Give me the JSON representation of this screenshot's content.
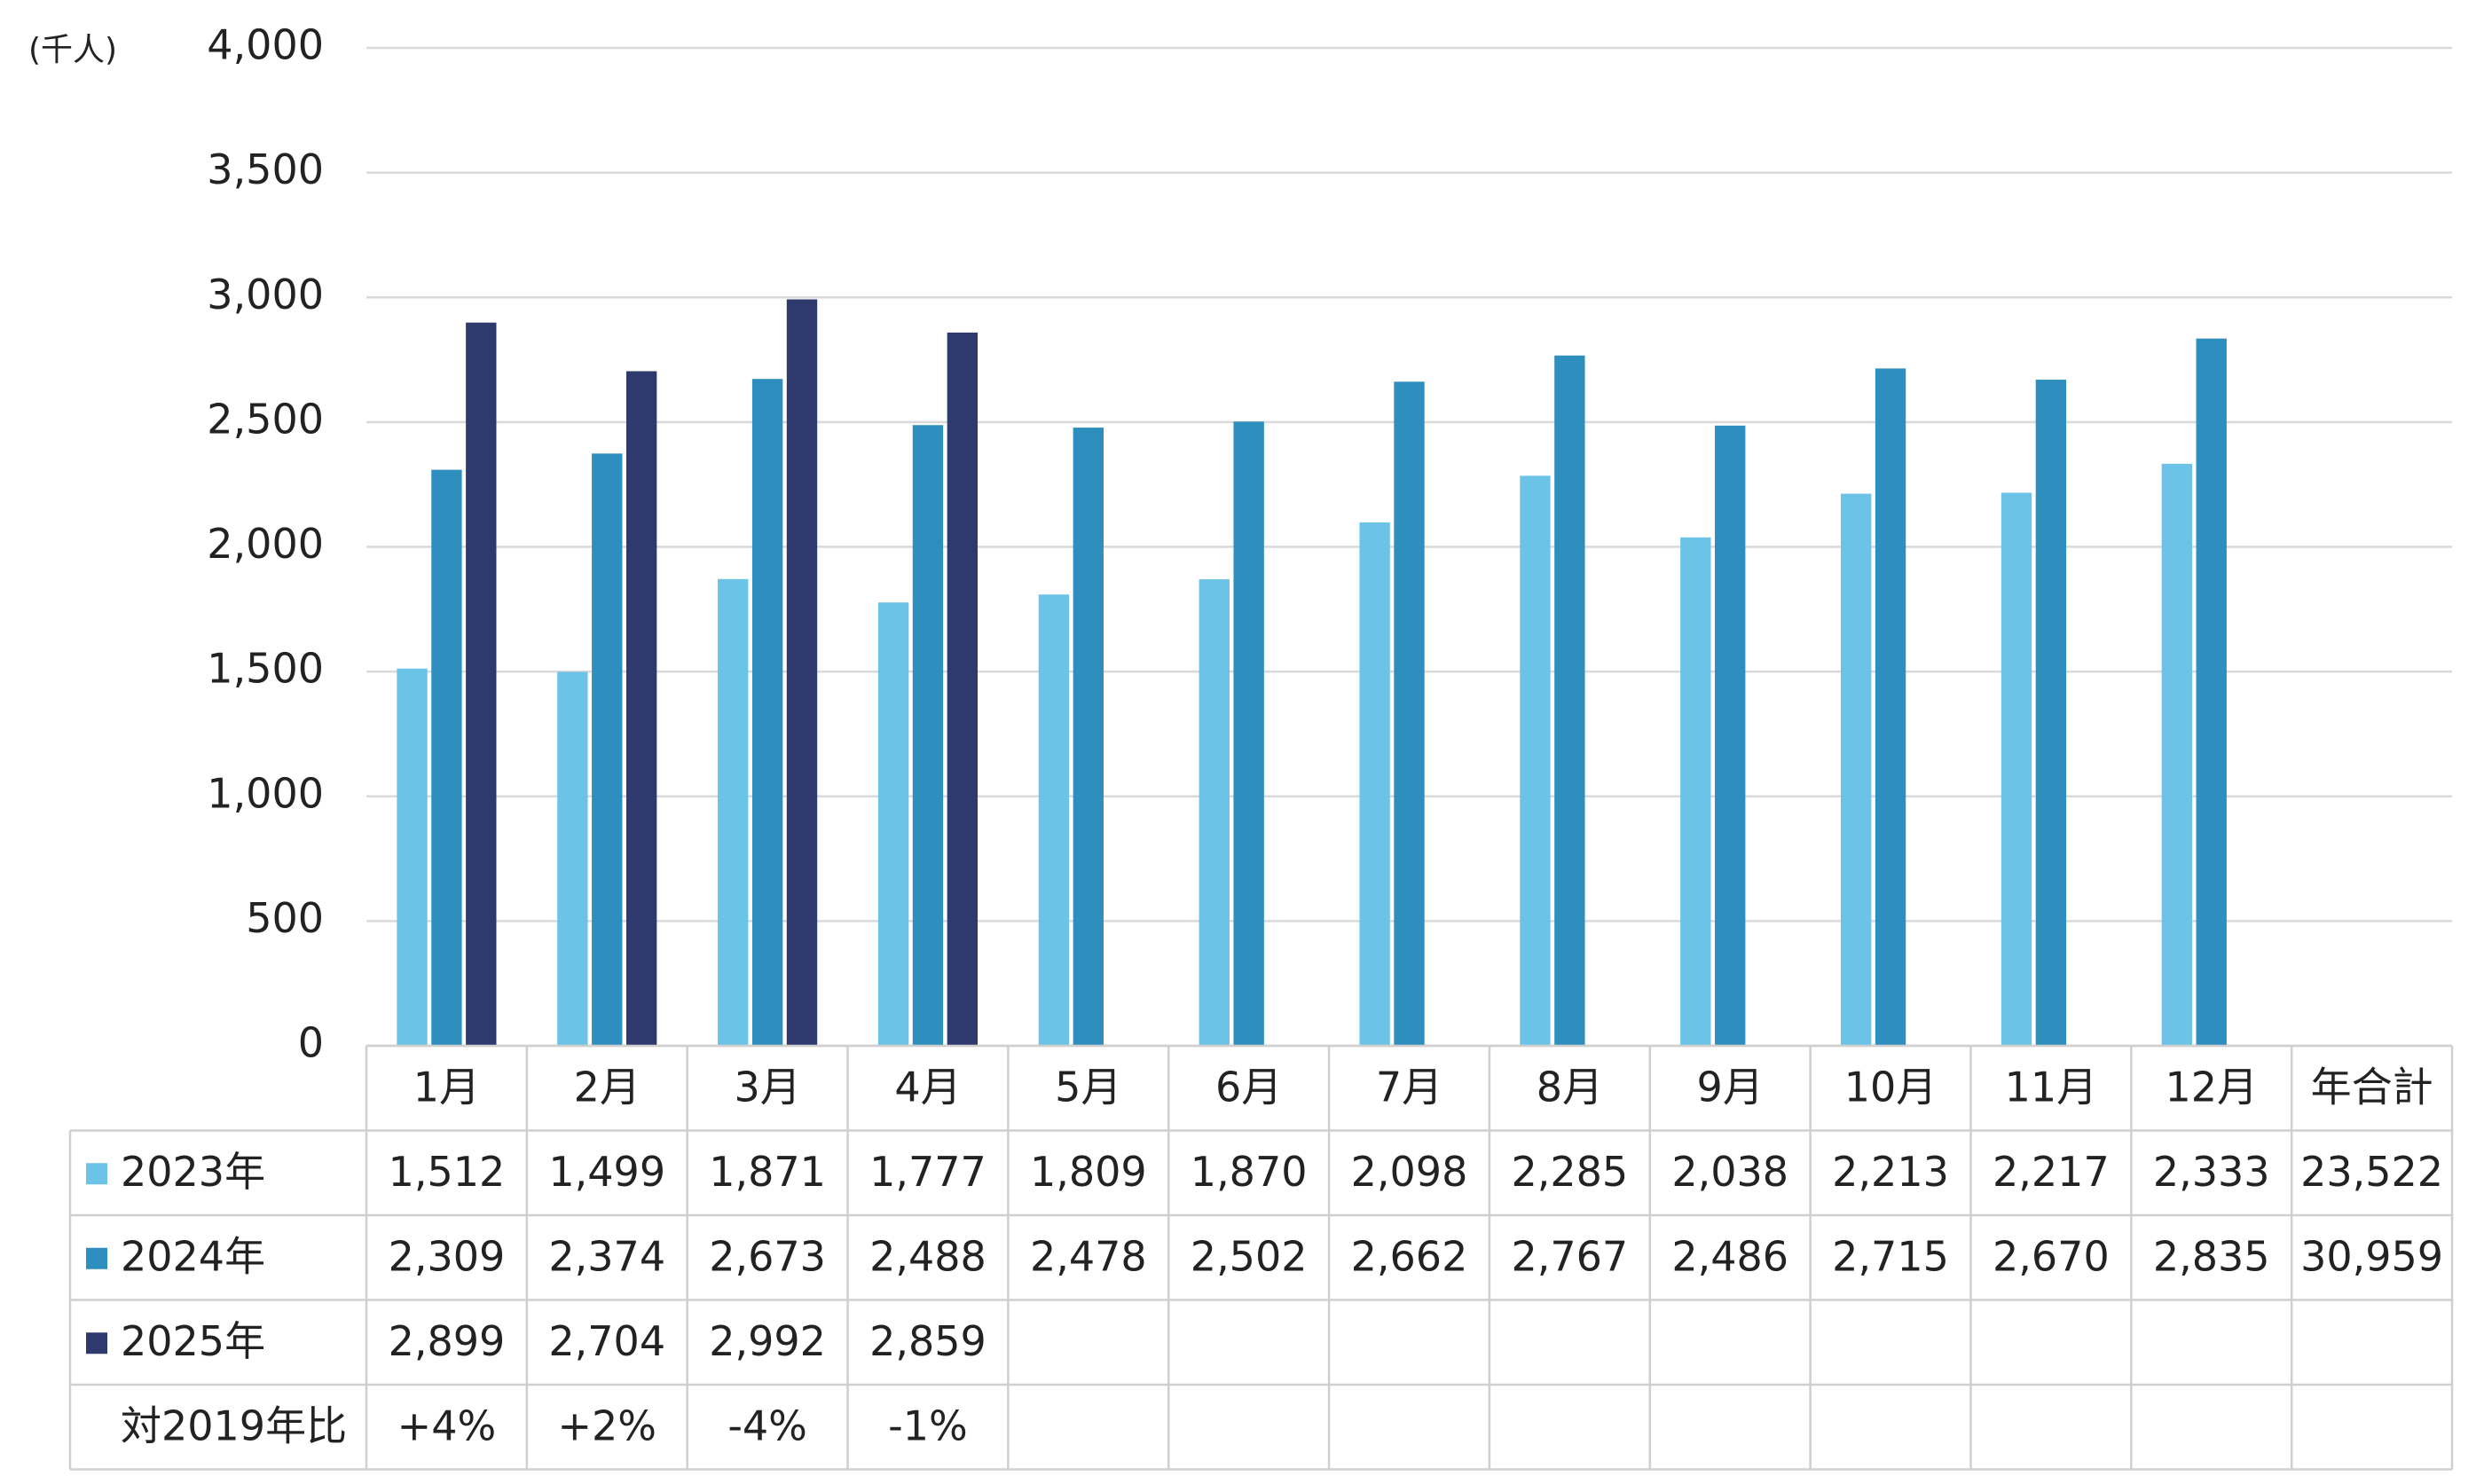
{
  "chart_data": {
    "type": "bar",
    "y_label": "(千人)",
    "categories": [
      "1月",
      "2月",
      "3月",
      "4月",
      "5月",
      "6月",
      "7月",
      "8月",
      "9月",
      "10月",
      "11月",
      "12月"
    ],
    "series": [
      {
        "name": "2023年",
        "color": "#6cc3e8",
        "values": [
          1512,
          1499,
          1871,
          1777,
          1809,
          1870,
          2098,
          2285,
          2038,
          2213,
          2217,
          2333
        ],
        "value_labels": [
          "1,512",
          "1,499",
          "1,871",
          "1,777",
          "1,809",
          "1,870",
          "2,098",
          "2,285",
          "2,038",
          "2,213",
          "2,217",
          "2,333"
        ]
      },
      {
        "name": "2024年",
        "color": "#2e8fbf",
        "values": [
          2309,
          2374,
          2673,
          2488,
          2478,
          2502,
          2662,
          2767,
          2486,
          2715,
          2670,
          2835
        ],
        "value_labels": [
          "2,309",
          "2,374",
          "2,673",
          "2,488",
          "2,478",
          "2,502",
          "2,662",
          "2,767",
          "2,486",
          "2,715",
          "2,670",
          "2,835"
        ]
      },
      {
        "name": "2025年",
        "color": "#2e3a6e",
        "values": [
          2899,
          2704,
          2992,
          2859,
          null,
          null,
          null,
          null,
          null,
          null,
          null,
          null
        ],
        "value_labels": [
          "2,899",
          "2,704",
          "2,992",
          "2,859",
          null,
          null,
          null,
          null,
          null,
          null,
          null,
          null
        ]
      }
    ],
    "totals": {
      "name": "年合計",
      "values": [
        23522,
        30959
      ],
      "value_labels": [
        "23,522",
        "30,959"
      ]
    },
    "comparison": {
      "name": "対2019年比",
      "values": [
        4,
        2,
        -4,
        -1
      ],
      "value_labels": [
        "+4%",
        "+2%",
        "-4%",
        "-1%"
      ]
    },
    "ylim": [
      0,
      4000
    ],
    "yticks": [
      0,
      500,
      {
        "value": 1000,
        "label": "1,000"
      },
      {
        "value": 1500,
        "label": "1,500"
      },
      {
        "value": 2000,
        "label": "2,000"
      },
      {
        "value": 2500,
        "label": "2,500"
      },
      {
        "value": 3000,
        "label": "3,000"
      },
      {
        "value": 3500,
        "label": "3,500"
      },
      {
        "value": 4000,
        "label": "4,000"
      }
    ],
    "grid": true
  }
}
